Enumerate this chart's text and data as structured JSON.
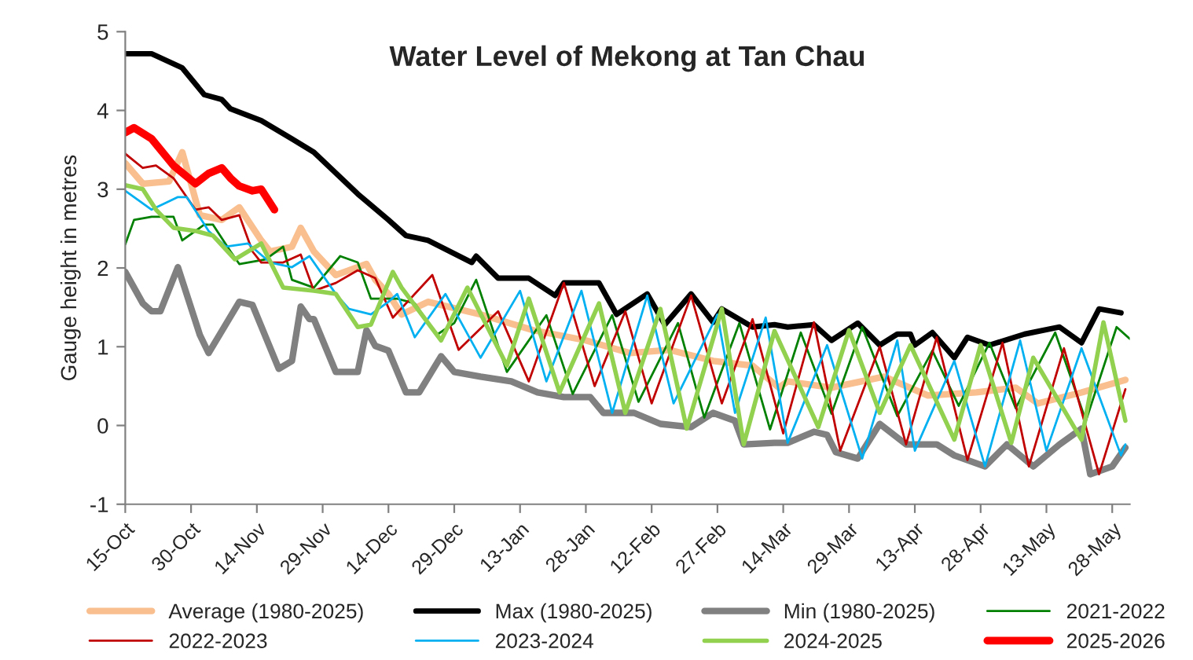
{
  "chart_data": {
    "type": "line",
    "title": "Water Level of Mekong at Tan Chau",
    "ylabel": "Gauge height in metres",
    "xlim": [
      "2025-10-15",
      "2026-06-01"
    ],
    "ylim": [
      -1,
      5
    ],
    "yticks": [
      -1,
      0,
      1,
      2,
      3,
      4,
      5
    ],
    "xticks": [
      {
        "value": "2025-10-15",
        "label": "15-Oct"
      },
      {
        "value": "2025-10-30",
        "label": "30-Oct"
      },
      {
        "value": "2025-11-14",
        "label": "14-Nov"
      },
      {
        "value": "2025-11-29",
        "label": "29-Nov"
      },
      {
        "value": "2025-12-14",
        "label": "14-Dec"
      },
      {
        "value": "2025-12-29",
        "label": "29-Dec"
      },
      {
        "value": "2026-01-13",
        "label": "13-Jan"
      },
      {
        "value": "2026-01-28",
        "label": "28-Jan"
      },
      {
        "value": "2026-02-12",
        "label": "12-Feb"
      },
      {
        "value": "2026-02-27",
        "label": "27-Feb"
      },
      {
        "value": "2026-03-14",
        "label": "14-Mar"
      },
      {
        "value": "2026-03-29",
        "label": "29-Mar"
      },
      {
        "value": "2026-04-13",
        "label": "13-Apr"
      },
      {
        "value": "2026-04-28",
        "label": "28-Apr"
      },
      {
        "value": "2026-05-13",
        "label": "13-May"
      },
      {
        "value": "2026-05-28",
        "label": "28-May"
      }
    ],
    "grid": false,
    "legend": "bottom",
    "marker": "none",
    "line_style": "solid",
    "series": [
      {
        "name": "Average (1980-2025)",
        "color": "#f9bf8f",
        "x": [
          "2025-10-15",
          "2025-10-19",
          "2025-10-25",
          "2025-10-28",
          "2025-11-01",
          "2025-11-06",
          "2025-11-10",
          "2025-11-15",
          "2025-11-17",
          "2025-11-22",
          "2025-11-24",
          "2025-11-27",
          "2025-12-02",
          "2025-12-09",
          "2025-12-11",
          "2025-12-14",
          "2025-12-17",
          "2025-12-23",
          "2026-01-04",
          "2026-01-16",
          "2026-01-28",
          "2026-02-07",
          "2026-02-16",
          "2026-02-26",
          "2026-03-07",
          "2026-03-13",
          "2026-03-15",
          "2026-03-25",
          "2026-04-06",
          "2026-04-16",
          "2026-04-27",
          "2026-05-06",
          "2026-05-11",
          "2026-05-21",
          "2026-05-31"
        ],
        "values": [
          3.33,
          3.07,
          3.1,
          3.47,
          2.67,
          2.61,
          2.77,
          2.35,
          2.21,
          2.27,
          2.51,
          2.21,
          1.91,
          2.05,
          1.85,
          1.67,
          1.41,
          1.57,
          1.41,
          1.21,
          1.08,
          0.92,
          0.96,
          0.82,
          0.76,
          0.48,
          0.56,
          0.48,
          0.62,
          0.38,
          0.42,
          0.48,
          0.28,
          0.42,
          0.58
        ]
      },
      {
        "name": "Max (1980-2025)",
        "color": "#000000",
        "x": [
          "2025-10-15",
          "2025-10-21",
          "2025-10-28",
          "2025-11-02",
          "2025-11-06",
          "2025-11-08",
          "2025-11-15",
          "2025-11-22",
          "2025-11-27",
          "2025-12-07",
          "2025-12-14",
          "2025-12-18",
          "2025-12-23",
          "2026-01-02",
          "2026-01-03",
          "2026-01-08",
          "2026-01-15",
          "2026-01-21",
          "2026-01-23",
          "2026-01-31",
          "2026-02-04",
          "2026-02-11",
          "2026-02-15",
          "2026-02-21",
          "2026-02-26",
          "2026-02-28",
          "2026-03-07",
          "2026-03-12",
          "2026-03-15",
          "2026-03-21",
          "2026-03-25",
          "2026-03-31",
          "2026-04-05",
          "2026-04-09",
          "2026-04-12",
          "2026-04-13",
          "2026-04-17",
          "2026-04-22",
          "2026-04-25",
          "2026-04-30",
          "2026-05-08",
          "2026-05-16",
          "2026-05-21",
          "2026-05-25",
          "2026-05-30"
        ],
        "values": [
          4.72,
          4.72,
          4.54,
          4.2,
          4.14,
          4.02,
          3.87,
          3.64,
          3.47,
          2.94,
          2.61,
          2.41,
          2.35,
          2.07,
          2.15,
          1.87,
          1.87,
          1.65,
          1.81,
          1.81,
          1.41,
          1.67,
          1.28,
          1.67,
          1.31,
          1.48,
          1.25,
          1.28,
          1.25,
          1.28,
          1.08,
          1.3,
          1.02,
          1.16,
          1.16,
          1.02,
          1.18,
          0.86,
          1.12,
          1.02,
          1.16,
          1.25,
          1.05,
          1.48,
          1.43
        ]
      },
      {
        "name": "Min (1980-2025)",
        "color": "#808080",
        "x": [
          "2025-10-15",
          "2025-10-19",
          "2025-10-21",
          "2025-10-23",
          "2025-10-27",
          "2025-11-01",
          "2025-11-03",
          "2025-11-10",
          "2025-11-13",
          "2025-11-19",
          "2025-11-22",
          "2025-11-24",
          "2025-11-26",
          "2025-11-27",
          "2025-12-02",
          "2025-12-07",
          "2025-12-09",
          "2025-12-11",
          "2025-12-14",
          "2025-12-18",
          "2025-12-21",
          "2025-12-26",
          "2025-12-29",
          "2026-01-04",
          "2026-01-11",
          "2026-01-17",
          "2026-01-23",
          "2026-01-29",
          "2026-02-01",
          "2026-02-08",
          "2026-02-14",
          "2026-02-21",
          "2026-02-26",
          "2026-03-03",
          "2026-03-05",
          "2026-03-12",
          "2026-03-15",
          "2026-03-21",
          "2026-03-24",
          "2026-03-26",
          "2026-03-31",
          "2026-04-05",
          "2026-04-11",
          "2026-04-18",
          "2026-04-22",
          "2026-04-29",
          "2026-05-04",
          "2026-05-10",
          "2026-05-16",
          "2026-05-21",
          "2026-05-23",
          "2026-05-28",
          "2026-05-31"
        ],
        "values": [
          1.95,
          1.55,
          1.45,
          1.45,
          2.01,
          1.15,
          0.92,
          1.57,
          1.53,
          0.72,
          0.82,
          1.51,
          1.35,
          1.35,
          0.68,
          0.68,
          1.21,
          1.01,
          0.95,
          0.42,
          0.42,
          0.88,
          0.68,
          0.62,
          0.56,
          0.42,
          0.36,
          0.36,
          0.16,
          0.16,
          0.02,
          -0.02,
          0.16,
          0.06,
          -0.24,
          -0.22,
          -0.22,
          -0.08,
          -0.12,
          -0.34,
          -0.42,
          0.02,
          -0.24,
          -0.24,
          -0.38,
          -0.52,
          -0.24,
          -0.52,
          -0.24,
          -0.04,
          -0.62,
          -0.52,
          -0.28
        ]
      },
      {
        "name": "2021-2022",
        "color": "#008000",
        "x": [
          "2025-10-15",
          "2025-10-17",
          "2025-10-21",
          "2025-10-26",
          "2025-10-28",
          "2025-11-02",
          "2025-11-04",
          "2025-11-08",
          "2025-11-10",
          "2025-11-16",
          "2025-11-20",
          "2025-11-22",
          "2025-11-27",
          "2025-12-03",
          "2025-12-07",
          "2025-12-10",
          "2025-12-16",
          "2025-12-20",
          "2025-12-25",
          "2025-12-29",
          "2026-01-03",
          "2026-01-10",
          "2026-01-19",
          "2026-01-25",
          "2026-02-03",
          "2026-02-09",
          "2026-02-18",
          "2026-02-24",
          "2026-03-04",
          "2026-03-11",
          "2026-03-18",
          "2026-03-25",
          "2026-04-01",
          "2026-04-09",
          "2026-04-17",
          "2026-04-23",
          "2026-04-30",
          "2026-05-06",
          "2026-05-15",
          "2026-05-22",
          "2026-05-29",
          "2026-06-01"
        ],
        "values": [
          2.3,
          2.61,
          2.65,
          2.65,
          2.35,
          2.55,
          2.55,
          2.21,
          2.05,
          2.11,
          2.27,
          1.85,
          1.75,
          2.15,
          2.07,
          1.61,
          1.61,
          1.55,
          1.15,
          1.3,
          1.85,
          0.68,
          1.4,
          0.4,
          1.4,
          0.3,
          1.3,
          0.1,
          1.3,
          -0.05,
          1.18,
          0.15,
          1.25,
          0.12,
          0.95,
          0.25,
          1.05,
          0.22,
          1.18,
          0.06,
          1.25,
          1.1
        ]
      },
      {
        "name": "2022-2023",
        "color": "#c00000",
        "x": [
          "2025-10-15",
          "2025-10-19",
          "2025-10-22",
          "2025-10-26",
          "2025-10-31",
          "2025-11-03",
          "2025-11-06",
          "2025-11-10",
          "2025-11-13",
          "2025-11-15",
          "2025-11-20",
          "2025-11-24",
          "2025-11-27",
          "2025-12-02",
          "2025-12-07",
          "2025-12-11",
          "2025-12-15",
          "2025-12-24",
          "2025-12-30",
          "2026-01-08",
          "2026-01-15",
          "2026-01-23",
          "2026-01-30",
          "2026-02-06",
          "2026-02-12",
          "2026-02-21",
          "2026-02-28",
          "2026-03-07",
          "2026-03-14",
          "2026-03-21",
          "2026-03-27",
          "2026-04-05",
          "2026-04-11",
          "2026-04-18",
          "2026-04-25",
          "2026-05-03",
          "2026-05-09",
          "2026-05-17",
          "2026-05-25",
          "2026-05-31"
        ],
        "values": [
          3.45,
          3.27,
          3.3,
          3.14,
          2.74,
          2.77,
          2.61,
          2.67,
          2.21,
          2.07,
          2.07,
          2.17,
          1.71,
          1.81,
          1.97,
          1.87,
          1.37,
          1.91,
          0.96,
          1.45,
          0.56,
          1.81,
          0.5,
          1.45,
          0.28,
          1.65,
          0.28,
          1.35,
          -0.1,
          1.31,
          -0.32,
          1.0,
          -0.24,
          1.12,
          -0.44,
          1.05,
          -0.52,
          0.98,
          -0.62,
          0.46
        ]
      },
      {
        "name": "2023-2024",
        "color": "#00b0f0",
        "x": [
          "2025-10-15",
          "2025-10-21",
          "2025-10-27",
          "2025-10-29",
          "2025-11-03",
          "2025-11-07",
          "2025-11-12",
          "2025-11-17",
          "2025-11-22",
          "2025-11-26",
          "2025-12-02",
          "2025-12-05",
          "2025-12-10",
          "2025-12-14",
          "2025-12-16",
          "2025-12-20",
          "2025-12-27",
          "2026-01-04",
          "2026-01-13",
          "2026-01-19",
          "2026-01-27",
          "2026-02-03",
          "2026-02-11",
          "2026-02-17",
          "2026-02-27",
          "2026-03-03",
          "2026-03-10",
          "2026-03-15",
          "2026-03-24",
          "2026-04-01",
          "2026-04-09",
          "2026-04-13",
          "2026-04-22",
          "2026-04-29",
          "2026-05-07",
          "2026-05-13",
          "2026-05-21",
          "2026-05-30",
          "2026-05-31"
        ],
        "values": [
          2.98,
          2.74,
          2.9,
          2.9,
          2.47,
          2.27,
          2.31,
          2.07,
          2.01,
          2.15,
          1.67,
          1.48,
          1.41,
          1.57,
          1.67,
          1.12,
          1.67,
          0.86,
          1.71,
          0.56,
          1.71,
          0.16,
          1.65,
          0.28,
          1.41,
          0.16,
          1.37,
          -0.22,
          1.02,
          -0.42,
          1.08,
          -0.32,
          0.82,
          -0.52,
          1.08,
          -0.32,
          0.98,
          -0.38,
          -0.24
        ]
      },
      {
        "name": "2024-2025",
        "color": "#92d050",
        "x": [
          "2025-10-15",
          "2025-10-19",
          "2025-10-22",
          "2025-10-26",
          "2025-10-31",
          "2025-11-04",
          "2025-11-09",
          "2025-11-15",
          "2025-11-20",
          "2025-11-27",
          "2025-12-02",
          "2025-12-07",
          "2025-12-10",
          "2025-12-15",
          "2025-12-17",
          "2025-12-26",
          "2026-01-01",
          "2026-01-10",
          "2026-01-15",
          "2026-01-22",
          "2026-01-31",
          "2026-02-06",
          "2026-02-14",
          "2026-02-20",
          "2026-02-28",
          "2026-03-05",
          "2026-03-12",
          "2026-03-22",
          "2026-03-29",
          "2026-04-05",
          "2026-04-12",
          "2026-04-22",
          "2026-04-28",
          "2026-05-05",
          "2026-05-10",
          "2026-05-21",
          "2026-05-26",
          "2026-05-31"
        ],
        "values": [
          3.05,
          3.0,
          2.74,
          2.51,
          2.47,
          2.41,
          2.11,
          2.31,
          1.75,
          1.71,
          1.67,
          1.25,
          1.28,
          1.95,
          1.75,
          1.08,
          1.75,
          0.76,
          1.61,
          0.42,
          1.55,
          0.16,
          1.48,
          -0.04,
          1.48,
          -0.24,
          1.2,
          -0.02,
          1.21,
          0.16,
          1.02,
          -0.18,
          1.02,
          -0.22,
          0.86,
          -0.18,
          1.31,
          0.06
        ]
      },
      {
        "name": "2025-2026",
        "color": "#ff0000",
        "x": [
          "2025-10-15",
          "2025-10-17",
          "2025-10-21",
          "2025-10-26",
          "2025-10-31",
          "2025-11-03",
          "2025-11-06",
          "2025-11-08",
          "2025-11-10",
          "2025-11-13",
          "2025-11-15",
          "2025-11-18"
        ],
        "values": [
          3.72,
          3.78,
          3.64,
          3.3,
          3.07,
          3.2,
          3.27,
          3.14,
          3.04,
          2.98,
          3.0,
          2.74
        ]
      }
    ]
  }
}
